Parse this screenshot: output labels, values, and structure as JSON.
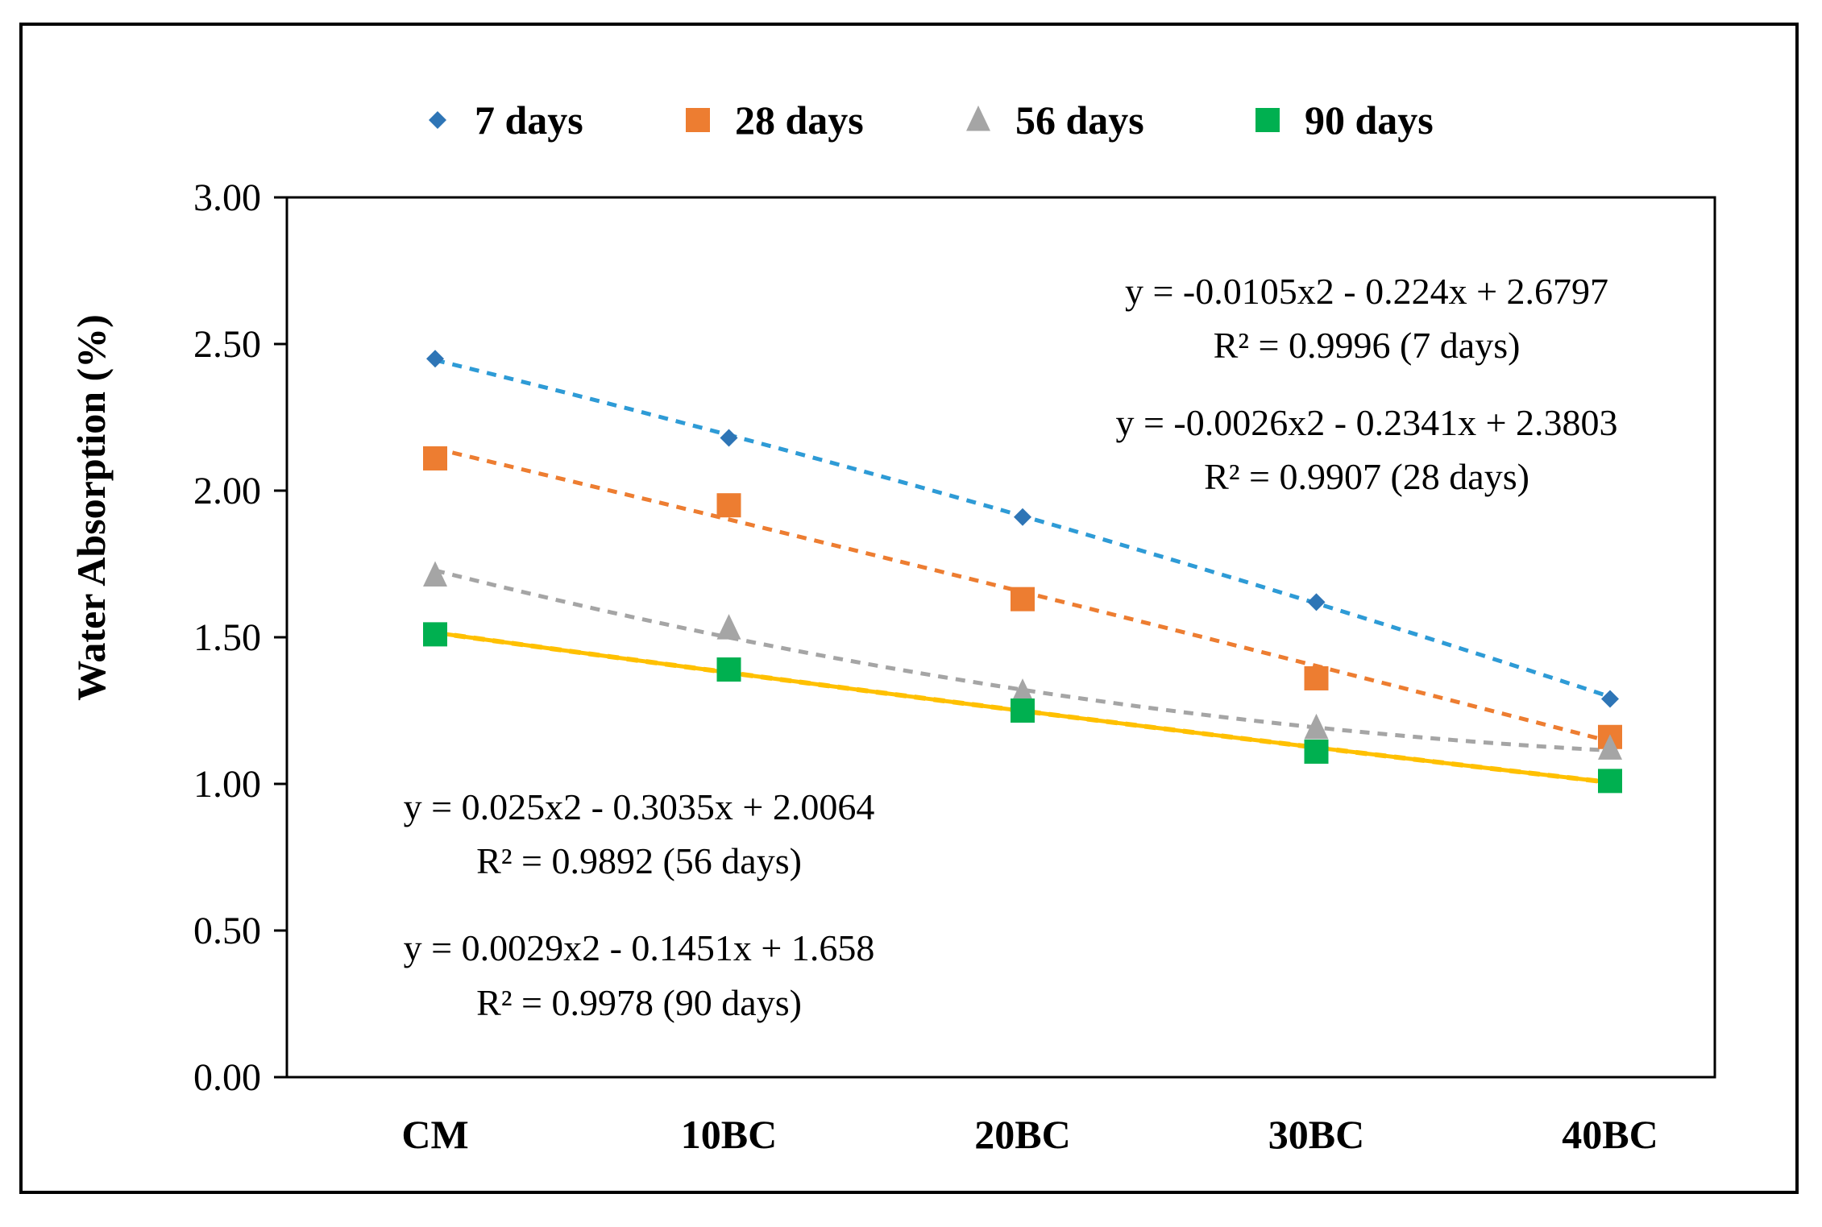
{
  "chart_data": {
    "type": "scatter",
    "title": "",
    "xlabel": "",
    "ylabel": "Water Absorption (%)",
    "ylim": [
      0,
      3
    ],
    "yticks": [
      "0.00",
      "0.50",
      "1.00",
      "1.50",
      "2.00",
      "2.50",
      "3.00"
    ],
    "categories": [
      "CM",
      "10BC",
      "20BC",
      "30BC",
      "40BC"
    ],
    "legend_position": "top",
    "series": [
      {
        "name": "7 days",
        "color": "#2E75B6",
        "marker": "diamond",
        "trend_color": "#2E9BD6",
        "trend_style": "dashed",
        "values": [
          2.45,
          2.18,
          1.91,
          1.62,
          1.29
        ],
        "fit": [
          -0.0105,
          -0.224,
          2.6797
        ]
      },
      {
        "name": "28 days",
        "color": "#ED7D31",
        "marker": "square",
        "trend_color": "#ED7D31",
        "trend_style": "dashed",
        "values": [
          2.11,
          1.95,
          1.63,
          1.36,
          1.16
        ],
        "fit": [
          -0.0026,
          -0.2341,
          2.3803
        ]
      },
      {
        "name": "56 days",
        "color": "#A5A5A5",
        "marker": "triangle",
        "trend_color": "#A5A5A5",
        "trend_style": "dashed",
        "values": [
          1.71,
          1.53,
          1.31,
          1.19,
          1.12
        ],
        "fit": [
          0.025,
          -0.3035,
          2.0064
        ]
      },
      {
        "name": "90 days",
        "color": "#00B050",
        "marker": "square",
        "trend_color": "#FFC000",
        "trend_style": "solid+dashed",
        "values": [
          1.51,
          1.39,
          1.25,
          1.11,
          1.01
        ],
        "fit": [
          0.0029,
          -0.1451,
          1.658
        ]
      }
    ],
    "annotations": [
      {
        "series": "7 days",
        "equation": "y = -0.0105x2 - 0.224x + 2.6797",
        "r2": "R² = 0.9996  (7 days)"
      },
      {
        "series": "28 days",
        "equation": "y = -0.0026x2 - 0.2341x + 2.3803",
        "r2": "R² = 0.9907    (28 days)"
      },
      {
        "series": "56 days",
        "equation": "y = 0.025x2 - 0.3035x + 2.0064",
        "r2": "R² = 0.9892   (56 days)"
      },
      {
        "series": "90 days",
        "equation": "y = 0.0029x2 - 0.1451x + 1.658",
        "r2": "R² = 0.9978    (90 days)"
      }
    ]
  }
}
